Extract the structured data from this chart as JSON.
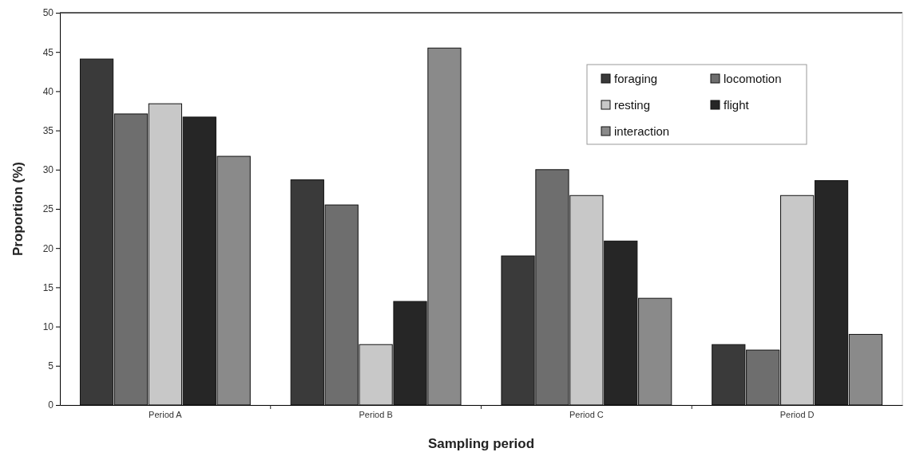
{
  "chart_data": {
    "type": "bar",
    "xlabel": "Sampling period",
    "ylabel": "Proportion (%)",
    "categories": [
      "Period A",
      "Period B",
      "Period C",
      "Period D"
    ],
    "series": [
      {
        "name": "foraging",
        "color": "#3a3a3a",
        "values": [
          44.1,
          28.7,
          19.0,
          7.7
        ]
      },
      {
        "name": "locomotion",
        "color": "#6e6e6e",
        "values": [
          37.1,
          25.5,
          30.0,
          7.0
        ]
      },
      {
        "name": "resting",
        "color": "#c8c8c8",
        "values": [
          38.4,
          7.7,
          26.7,
          26.7
        ]
      },
      {
        "name": "flight",
        "color": "#262626",
        "values": [
          36.7,
          13.2,
          20.9,
          28.6
        ]
      },
      {
        "name": "interaction",
        "color": "#8a8a8a",
        "values": [
          31.7,
          45.5,
          13.6,
          9.0
        ]
      }
    ],
    "ylim": [
      0,
      50
    ],
    "yticks": [
      0,
      5,
      10,
      15,
      20,
      25,
      30,
      35,
      40,
      45,
      50
    ],
    "grid": false,
    "legend": "top right"
  }
}
